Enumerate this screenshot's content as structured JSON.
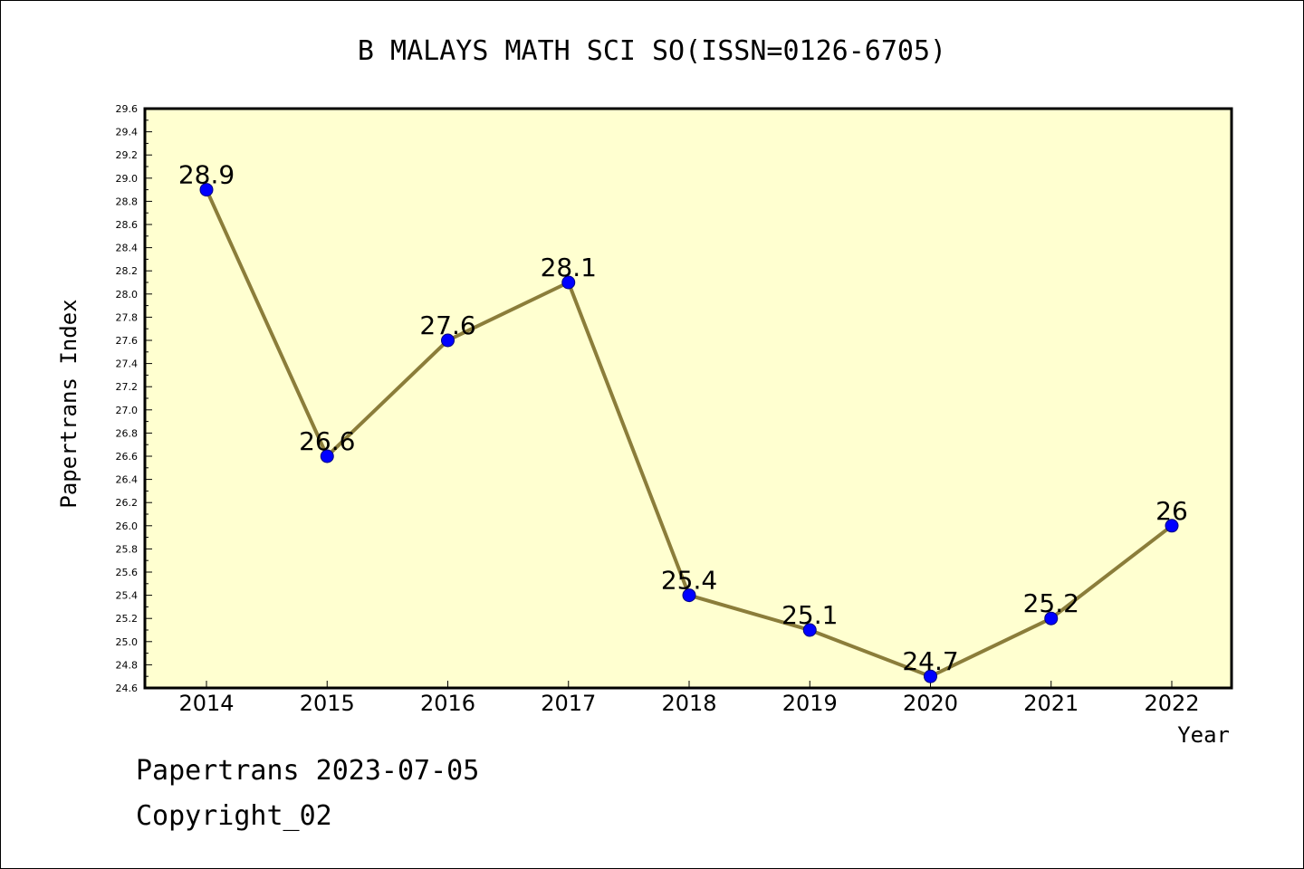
{
  "chart_data": {
    "type": "line",
    "title": "B MALAYS MATH SCI SO(ISSN=0126-6705)",
    "xlabel": "Year",
    "ylabel": "Papertrans Index",
    "categories": [
      "2014",
      "2015",
      "2016",
      "2017",
      "2018",
      "2019",
      "2020",
      "2021",
      "2022"
    ],
    "values": [
      28.9,
      26.6,
      27.6,
      28.1,
      25.4,
      25.1,
      24.7,
      25.2,
      26.0
    ],
    "data_labels": [
      "28.9",
      "26.6",
      "27.6",
      "28.1",
      "25.4",
      "25.1",
      "24.7",
      "25.2",
      "26"
    ],
    "ylim": [
      24.6,
      29.6
    ],
    "y_ticks": [
      "24.6",
      "24.8",
      "25.0",
      "25.2",
      "25.4",
      "25.6",
      "25.8",
      "26.0",
      "26.2",
      "26.4",
      "26.6",
      "26.8",
      "27.0",
      "27.2",
      "27.4",
      "27.6",
      "27.8",
      "28.0",
      "28.2",
      "28.4",
      "28.6",
      "28.8",
      "29.0",
      "29.2",
      "29.4",
      "29.6"
    ],
    "grid": false,
    "legend": "none",
    "colors": {
      "plot_background": "#ffffd0",
      "line": "#8b7d3a",
      "marker": "#0000ff",
      "axis": "#000000"
    }
  },
  "footer": {
    "date_line": "Papertrans 2023-07-05",
    "copyright_line": "Copyright_02"
  }
}
